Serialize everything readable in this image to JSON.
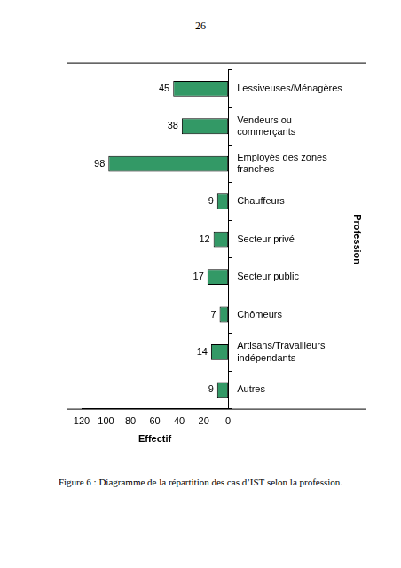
{
  "page_number": "26",
  "caption": "Figure 6 : Diagramme de la répartition des cas d’IST selon la profession.",
  "chart_data": {
    "type": "bar",
    "orientation": "horizontal",
    "categories": [
      [
        "Lessiveuses/Ménagères"
      ],
      [
        "Vendeurs ou",
        "commerçants"
      ],
      [
        "Employés des zones",
        "franches"
      ],
      [
        "Chauffeurs"
      ],
      [
        "Secteur privé"
      ],
      [
        "Secteur public"
      ],
      [
        "Chômeurs"
      ],
      [
        "Artisans/Travailleurs",
        "indépendants"
      ],
      [
        "Autres"
      ]
    ],
    "values": [
      45,
      38,
      98,
      9,
      12,
      17,
      7,
      14,
      9
    ],
    "color": "#339966",
    "x_label": "Effectif",
    "y_label": "Profession",
    "xlim": [
      0,
      120
    ],
    "xticks": [
      0,
      20,
      40,
      60,
      80,
      100,
      120
    ],
    "grid": false,
    "data_labels": true
  }
}
